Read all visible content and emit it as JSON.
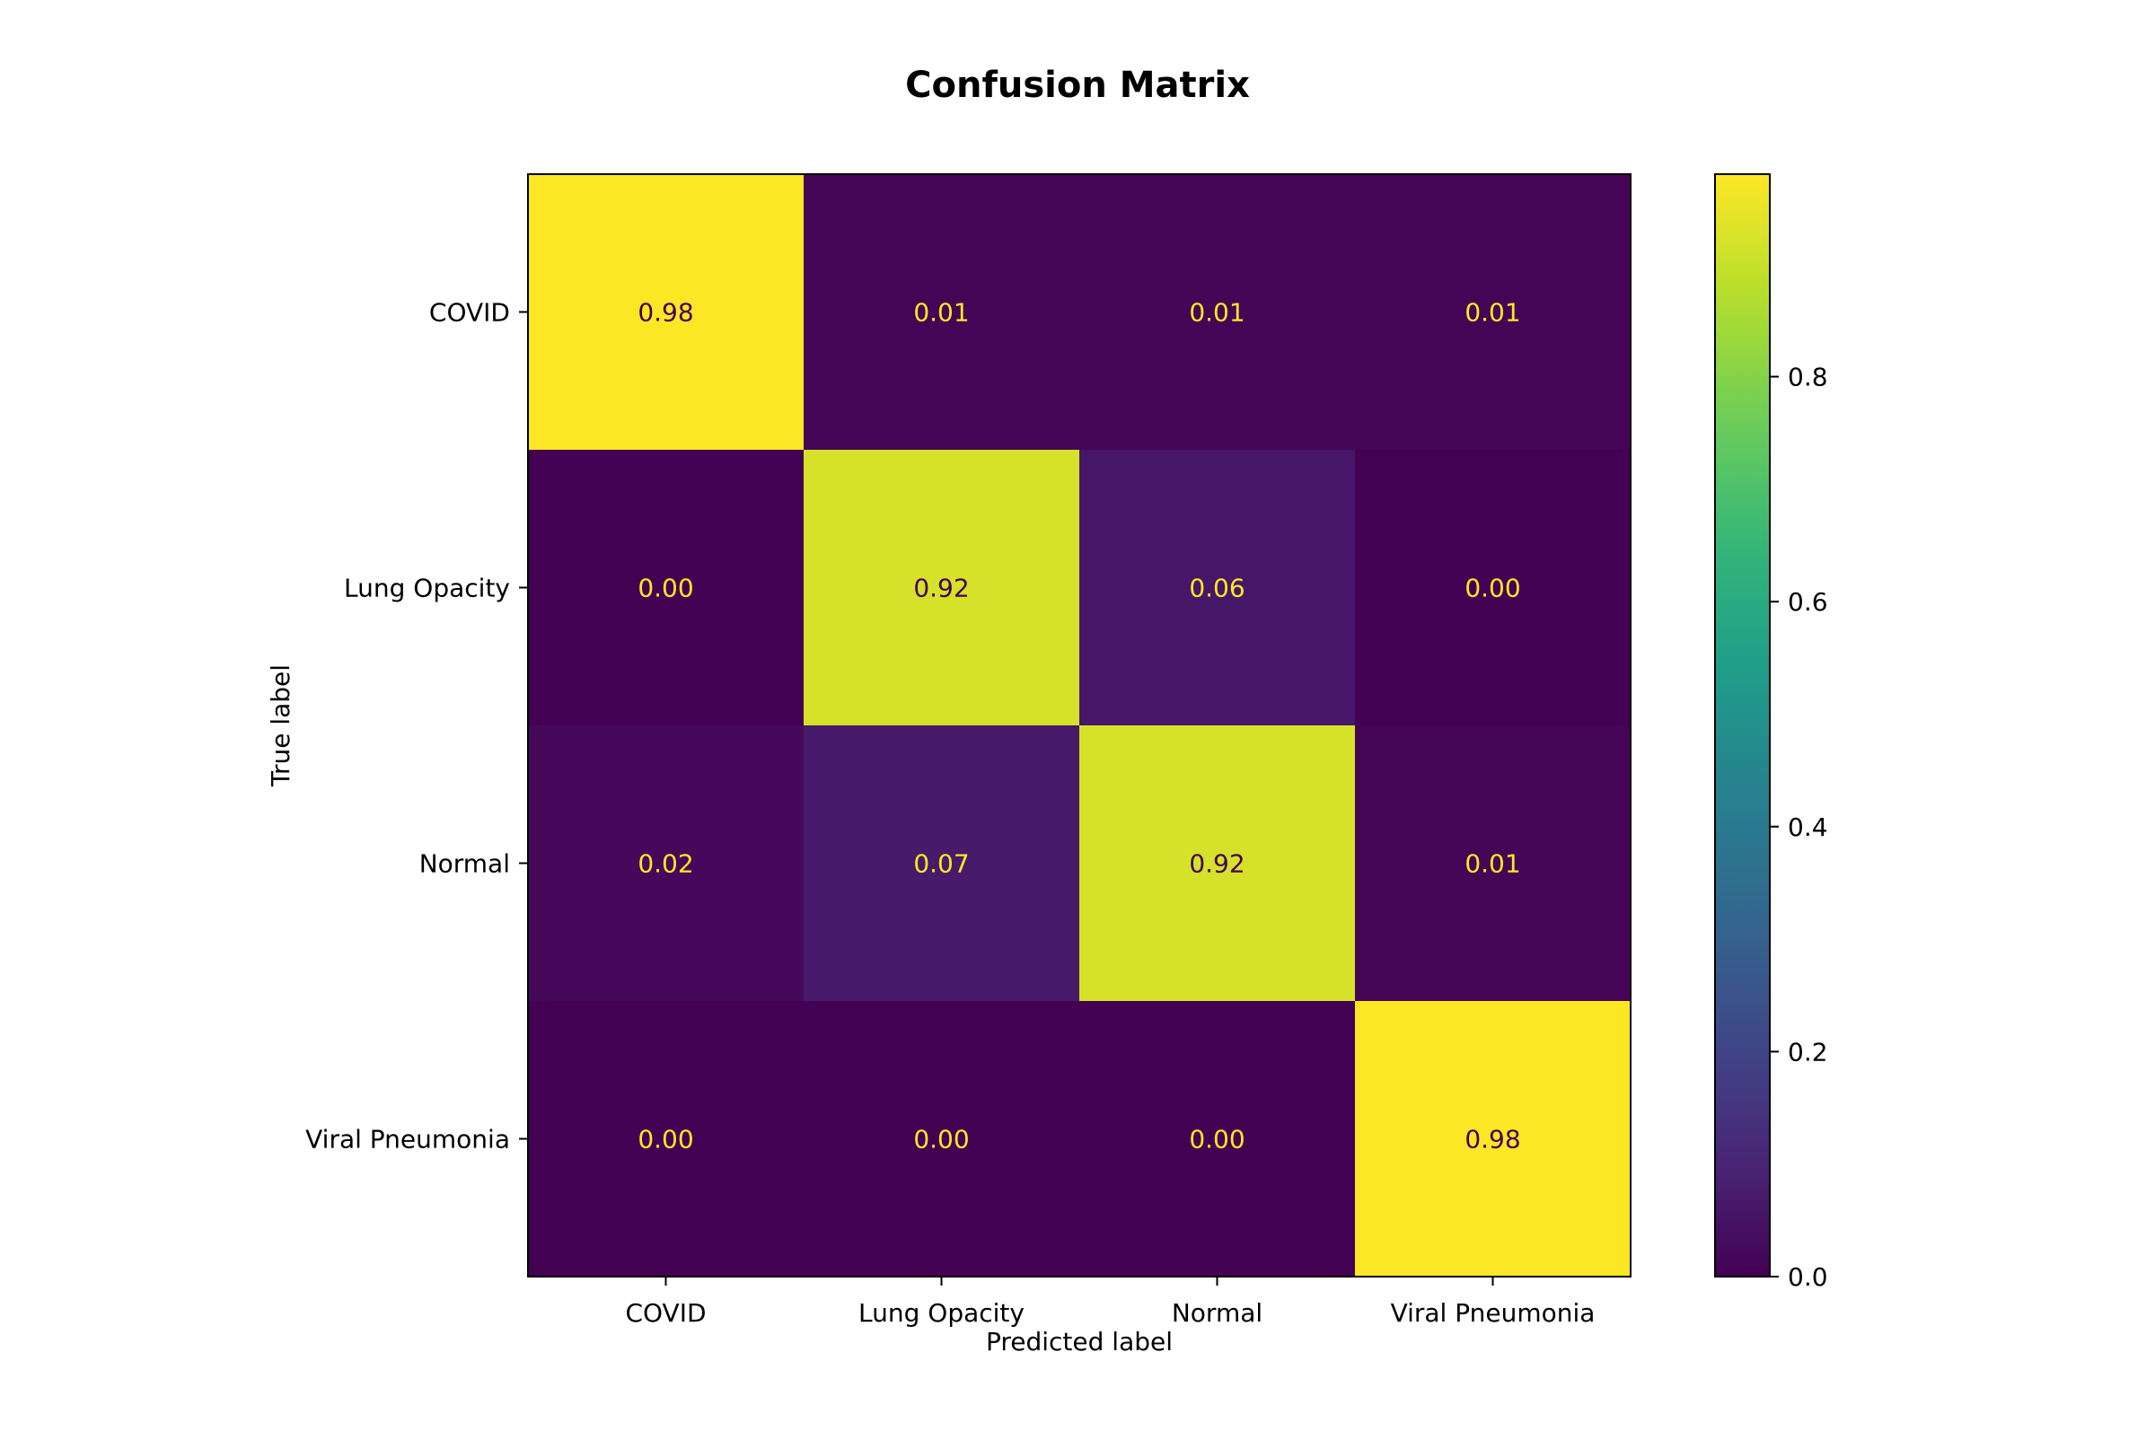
{
  "chart_data": {
    "type": "heatmap",
    "title": "Confusion Matrix",
    "xlabel": "Predicted label",
    "ylabel": "True label",
    "x_categories": [
      "COVID",
      "Lung Opacity",
      "Normal",
      "Viral Pneumonia"
    ],
    "y_categories": [
      "COVID",
      "Lung Opacity",
      "Normal",
      "Viral Pneumonia"
    ],
    "values": [
      [
        0.98,
        0.01,
        0.01,
        0.01
      ],
      [
        0.0,
        0.92,
        0.06,
        0.0
      ],
      [
        0.02,
        0.07,
        0.92,
        0.01
      ],
      [
        0.0,
        0.0,
        0.0,
        0.98
      ]
    ],
    "value_labels": [
      [
        "0.98",
        "0.01",
        "0.01",
        "0.01"
      ],
      [
        "0.00",
        "0.92",
        "0.06",
        "0.00"
      ],
      [
        "0.02",
        "0.07",
        "0.92",
        "0.01"
      ],
      [
        "0.00",
        "0.00",
        "0.00",
        "0.98"
      ]
    ],
    "colormap": "viridis",
    "colorbar": {
      "range": [
        0.0,
        0.98
      ],
      "ticks": [
        0.0,
        0.2,
        0.4,
        0.6,
        0.8
      ],
      "tick_labels": [
        "0.0",
        "0.2",
        "0.4",
        "0.6",
        "0.8"
      ]
    },
    "label_colors": {
      "on_dark": "#fde725",
      "on_light": "#440154"
    }
  }
}
